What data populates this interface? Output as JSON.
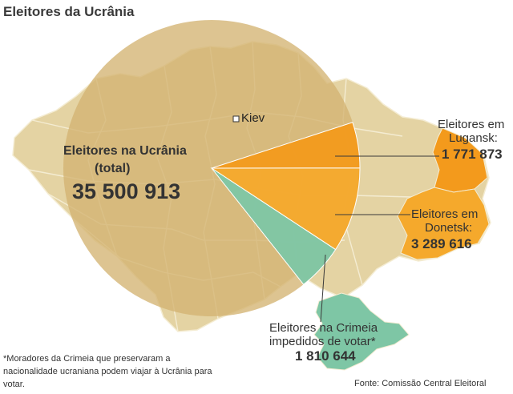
{
  "title": "Eleitores da Ucrânia",
  "colors": {
    "country_fill": "#e4d3a3",
    "region_border": "#f4ecd2",
    "circle_fill": "#d4b472",
    "lugansk": "#f39a1c",
    "donetsk": "#f5a92c",
    "crimea": "#7ec6a5",
    "callout_line": "#3a3a3a"
  },
  "map": {
    "capital_label": "Kiev",
    "capital_icon": "square-marker-icon"
  },
  "total": {
    "label_line_1": "Eleitores na Ucrânia",
    "label_line_2": "(total)",
    "value": "35 500 913",
    "value_number": 35500913
  },
  "callouts": {
    "lugansk": {
      "label_line_1": "Eleitores em",
      "label_line_2": "Lugansk:",
      "value": "1 771 873",
      "value_number": 1771873
    },
    "donetsk": {
      "label_line_1": "Eleitores em",
      "label_line_2": "Donetsk:",
      "value": "3 289 616",
      "value_number": 3289616
    },
    "crimea": {
      "label_line_1": "Eleitores na Crimeia",
      "label_line_2": "impedidos de votar*",
      "value": "1 810 644",
      "value_number": 1810644
    }
  },
  "footnote": "*Moradores da Crimeia que preservaram a nacionalidade ucraniana podem viajar à Ucrânia para votar.",
  "source": "Fonte: Comissão Central Eleitoral"
}
